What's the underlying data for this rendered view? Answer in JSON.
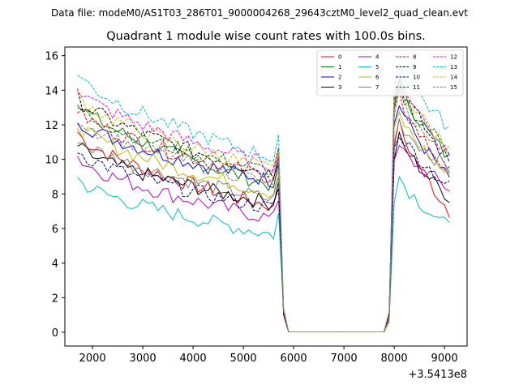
{
  "figure": {
    "supertitle": "Data file: modeM0/AS1T03_286T01_9000004268_29643cztM0_level2_quad_clean.evt",
    "x_offset_label": "+3.5413e8"
  },
  "chart_data": {
    "type": "line",
    "title": "Quadrant 1 module wise count rates with 100.0s bins.",
    "xlabel": "",
    "ylabel": "",
    "xlim": [
      1450,
      9450
    ],
    "ylim": [
      -0.8,
      16.5
    ],
    "x_ticks": [
      2000,
      3000,
      4000,
      5000,
      6000,
      7000,
      8000,
      9000
    ],
    "y_ticks": [
      0,
      2,
      4,
      6,
      8,
      10,
      12,
      14,
      16
    ],
    "x_offset": 354130000,
    "x_start": 1700,
    "x_step": 100,
    "legend_position": "top-right",
    "series": [
      {
        "name": "0",
        "color": "#ff0000",
        "dash": "solid",
        "start": 11.6,
        "end": 7.2,
        "post_start": 12.0,
        "post_end": 7.0
      },
      {
        "name": "1",
        "color": "#008000",
        "dash": "solid",
        "start": 13.4,
        "end": 8.4,
        "post_start": 14.4,
        "post_end": 10.0
      },
      {
        "name": "2",
        "color": "#0000ff",
        "dash": "solid",
        "start": 12.4,
        "end": 8.7,
        "post_start": 13.2,
        "post_end": 8.8
      },
      {
        "name": "3",
        "color": "#000000",
        "dash": "solid",
        "start": 10.8,
        "end": 7.4,
        "post_start": 11.2,
        "post_end": 7.8
      },
      {
        "name": "4",
        "color": "#bf00bf",
        "dash": "solid",
        "start": 10.2,
        "end": 6.5,
        "post_start": 10.7,
        "post_end": 8.3
      },
      {
        "name": "5",
        "color": "#00bfbf",
        "dash": "solid",
        "start": 8.9,
        "end": 5.6,
        "post_start": 9.0,
        "post_end": 6.0
      },
      {
        "name": "6",
        "color": "#bfbf00",
        "dash": "solid",
        "start": 12.1,
        "end": 8.0,
        "post_start": 12.6,
        "post_end": 9.0
      },
      {
        "name": "7",
        "color": "#808080",
        "dash": "solid",
        "start": 11.3,
        "end": 7.6,
        "post_start": 12.2,
        "post_end": 9.4
      },
      {
        "name": "8",
        "color": "#ff0000",
        "dash": "dashed",
        "start": 12.9,
        "end": 8.9,
        "post_start": 13.6,
        "post_end": 9.2
      },
      {
        "name": "9",
        "color": "#000000",
        "dash": "dashed",
        "start": 13.7,
        "end": 9.1,
        "post_start": 14.6,
        "post_end": 9.8
      },
      {
        "name": "10",
        "color": "#00008b",
        "dash": "dashed",
        "start": 10.6,
        "end": 7.1,
        "post_start": 11.6,
        "post_end": 8.4
      },
      {
        "name": "11",
        "color": "#006400",
        "dash": "dashed",
        "start": 13.1,
        "end": 9.2,
        "post_start": 14.0,
        "post_end": 10.6
      },
      {
        "name": "12",
        "color": "#ff00ff",
        "dash": "dashed",
        "start": 14.2,
        "end": 9.6,
        "post_start": 15.0,
        "post_end": 10.2
      },
      {
        "name": "13",
        "color": "#00bfbf",
        "dash": "dashed",
        "start": 15.1,
        "end": 10.0,
        "post_start": 15.5,
        "post_end": 11.8
      },
      {
        "name": "14",
        "color": "#bfbf00",
        "dash": "dashed",
        "start": 13.8,
        "end": 9.3,
        "post_start": 14.8,
        "post_end": 10.4
      },
      {
        "name": "15",
        "color": "#808080",
        "dash": "dashed",
        "start": 12.5,
        "end": 8.6,
        "post_start": 13.9,
        "post_end": 9.6
      }
    ]
  }
}
